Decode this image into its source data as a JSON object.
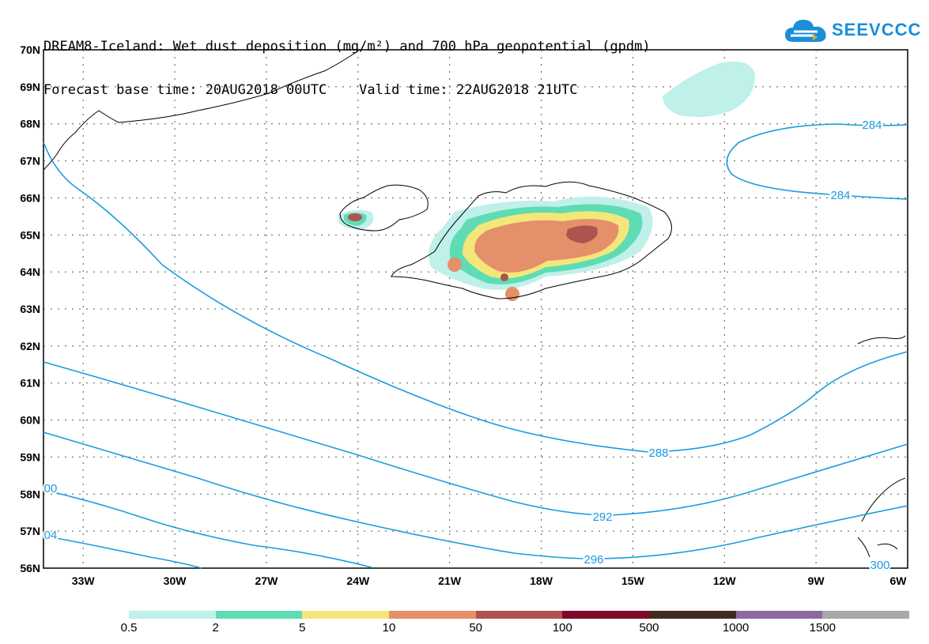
{
  "title": {
    "line1": "DREAM8-Iceland: Wet dust deposition (mg/m²) and 700 hPa geopotential (gpdm)",
    "line2": "Forecast base time: 20AUG2018 00UTC    Valid time: 22AUG2018 21UTC"
  },
  "logo": {
    "text": "SEEVCCC",
    "icon": "cloud-icon",
    "color": "#1a8fd8"
  },
  "map": {
    "lon_range": [
      -34.3,
      -6
    ],
    "lat_range": [
      56,
      70
    ],
    "lat_ticks": [
      "70N",
      "69N",
      "68N",
      "67N",
      "66N",
      "65N",
      "64N",
      "63N",
      "62N",
      "61N",
      "60N",
      "59N",
      "58N",
      "57N",
      "56N"
    ],
    "lon_ticks": [
      "33W",
      "30W",
      "27W",
      "24W",
      "21W",
      "18W",
      "15W",
      "12W",
      "9W",
      "6W"
    ],
    "contour_color": "#1a9be0",
    "contour_labels": [
      "284",
      "284",
      "288",
      "292",
      "296",
      "300",
      "00",
      "04"
    ]
  },
  "legend": {
    "colors": [
      "#bff0ea",
      "#5fdcb4",
      "#f4e77a",
      "#e4906a",
      "#ad544e",
      "#7f0a2a",
      "#3f2a1e",
      "#8c6a9e",
      "#a8a8a8"
    ],
    "labels": [
      "0.5",
      "2",
      "5",
      "10",
      "50",
      "100",
      "500",
      "1000",
      "1500"
    ]
  }
}
